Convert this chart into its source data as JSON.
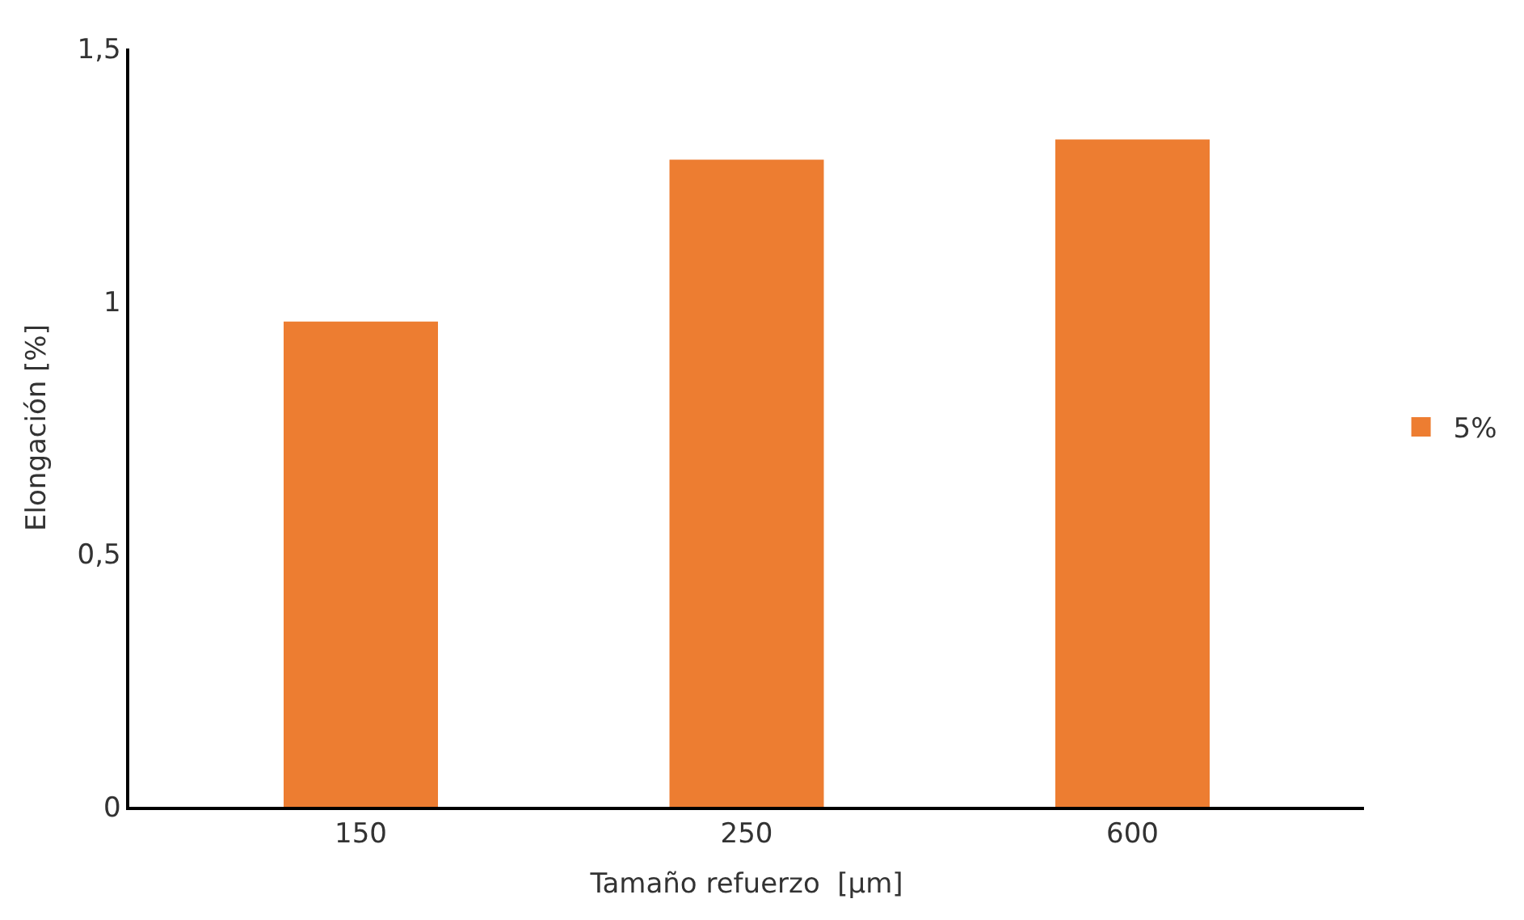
{
  "chart_data": {
    "type": "bar",
    "xlabel": "Tamaño refuerzo  [µm]",
    "ylabel": "Elongación [%]",
    "categories": [
      "150",
      "250",
      "600"
    ],
    "series": [
      {
        "name": "5%",
        "color": "#ed7d31",
        "values": [
          0.96,
          1.28,
          1.32
        ]
      }
    ],
    "ylim": [
      0,
      1.5
    ],
    "yticks": [
      0,
      {
        "value": 0.5,
        "label": "0,5"
      },
      1,
      {
        "value": 1.5,
        "label": "1,5"
      }
    ],
    "legend": "right"
  }
}
